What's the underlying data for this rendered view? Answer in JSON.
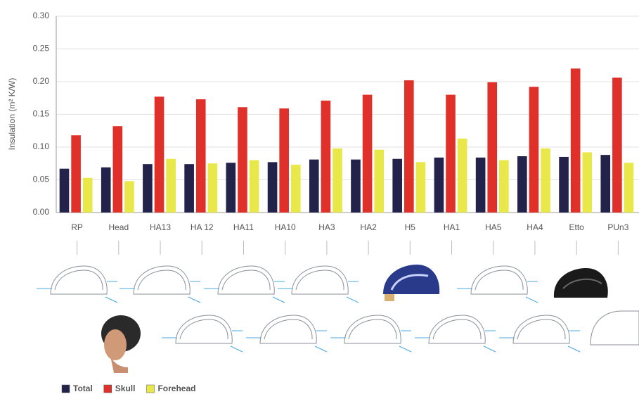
{
  "chart_data": {
    "type": "bar",
    "y_label": "Insulation (m² K/W)",
    "categories": [
      "RP",
      "Head",
      "HA13",
      "HA 12",
      "HA11",
      "HA10",
      "HA3",
      "HA2",
      "H5",
      "HA1",
      "HA5",
      "HA4",
      "Etto",
      "PUn3"
    ],
    "series": [
      {
        "name": "Total",
        "color": "#22224a",
        "values": [
          0.067,
          0.069,
          0.074,
          0.074,
          0.076,
          0.077,
          0.081,
          0.081,
          0.082,
          0.084,
          0.084,
          0.086,
          0.085,
          0.088
        ]
      },
      {
        "name": "Skull",
        "color": "#e0302a",
        "values": [
          0.118,
          0.132,
          0.177,
          0.173,
          0.161,
          0.159,
          0.171,
          0.18,
          0.202,
          0.18,
          0.199,
          0.192,
          0.22,
          0.206
        ]
      },
      {
        "name": "Forehead",
        "color": "#e8e84a",
        "values": [
          0.053,
          0.048,
          0.082,
          0.075,
          0.08,
          0.073,
          0.098,
          0.096,
          0.077,
          0.113,
          0.08,
          0.098,
          0.092,
          0.076
        ]
      }
    ],
    "ylim": [
      0,
      0.3
    ],
    "yticks": [
      {
        "value": 0,
        "label": "0.00"
      },
      0.05,
      {
        "value": 0.1,
        "label": "0.10"
      },
      0.15,
      {
        "value": 0.2,
        "label": "0.20"
      },
      0.25,
      {
        "value": 0.3,
        "label": "0.30"
      }
    ],
    "grid": true
  }
}
